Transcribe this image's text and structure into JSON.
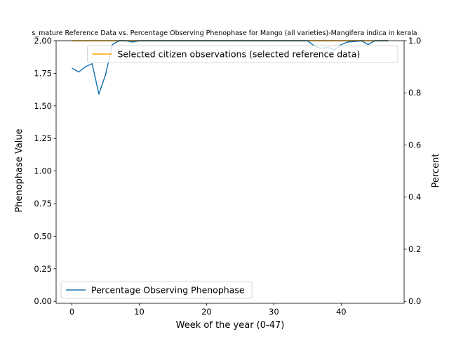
{
  "chart_data": {
    "type": "line",
    "title": "s_mature Reference Data vs. Percentage Observing Phenophase for Mango (all varieties)-Mangifera indica in kerala",
    "xlabel": "Week of the year (0-47)",
    "ylabel": "Phenophase Value",
    "y2label": "Percent",
    "xlim": [
      -2.35,
      49.35
    ],
    "ylim": [
      -0.015,
      2.0
    ],
    "y2lim": [
      -0.0075,
      1.0
    ],
    "xticks": [
      0,
      10,
      20,
      30,
      40
    ],
    "yticks": [
      0.0,
      0.25,
      0.5,
      0.75,
      1.0,
      1.25,
      1.5,
      1.75,
      2.0
    ],
    "yticklabels": [
      "0.00",
      "0.25",
      "0.50",
      "0.75",
      "1.00",
      "1.25",
      "1.50",
      "1.75",
      "2.00"
    ],
    "y2ticks": [
      0.0,
      0.2,
      0.4,
      0.6,
      0.8,
      1.0
    ],
    "y2ticklabels": [
      "0.0",
      "0.2",
      "0.4",
      "0.6",
      "0.8",
      "1.0"
    ],
    "grid": false,
    "series": [
      {
        "name": "Selected citizen observations (selected reference data)",
        "axis": "left",
        "color": "#ffa500",
        "x": [
          0,
          47
        ],
        "values": [
          2.0,
          2.0
        ],
        "legend_position": "upper-right"
      },
      {
        "name": "Percentage Observing Phenophase",
        "axis": "right",
        "color": "#1f77b4",
        "x": [
          0,
          1,
          2,
          3,
          4,
          5,
          6,
          7,
          8,
          9,
          10,
          11,
          12,
          13,
          14,
          15,
          16,
          17,
          18,
          19,
          20,
          21,
          22,
          23,
          24,
          25,
          26,
          27,
          28,
          29,
          30,
          31,
          32,
          33,
          34,
          35,
          36,
          37,
          38,
          39,
          40,
          41,
          42,
          43,
          44,
          45,
          46,
          47
        ],
        "values": [
          0.895,
          0.88,
          0.9,
          0.912,
          0.795,
          0.87,
          0.985,
          1.0,
          1.0,
          0.995,
          1.0,
          1.0,
          1.0,
          1.0,
          1.0,
          1.0,
          1.0,
          1.0,
          1.0,
          1.0,
          1.0,
          1.0,
          1.0,
          1.0,
          1.0,
          1.0,
          1.0,
          1.0,
          1.0,
          1.0,
          1.0,
          1.0,
          1.0,
          1.0,
          1.0,
          1.0,
          0.98,
          0.97,
          0.975,
          0.965,
          0.985,
          0.995,
          0.997,
          1.0,
          0.985,
          1.0,
          1.0,
          1.0
        ],
        "legend_position": "lower-left"
      }
    ]
  }
}
